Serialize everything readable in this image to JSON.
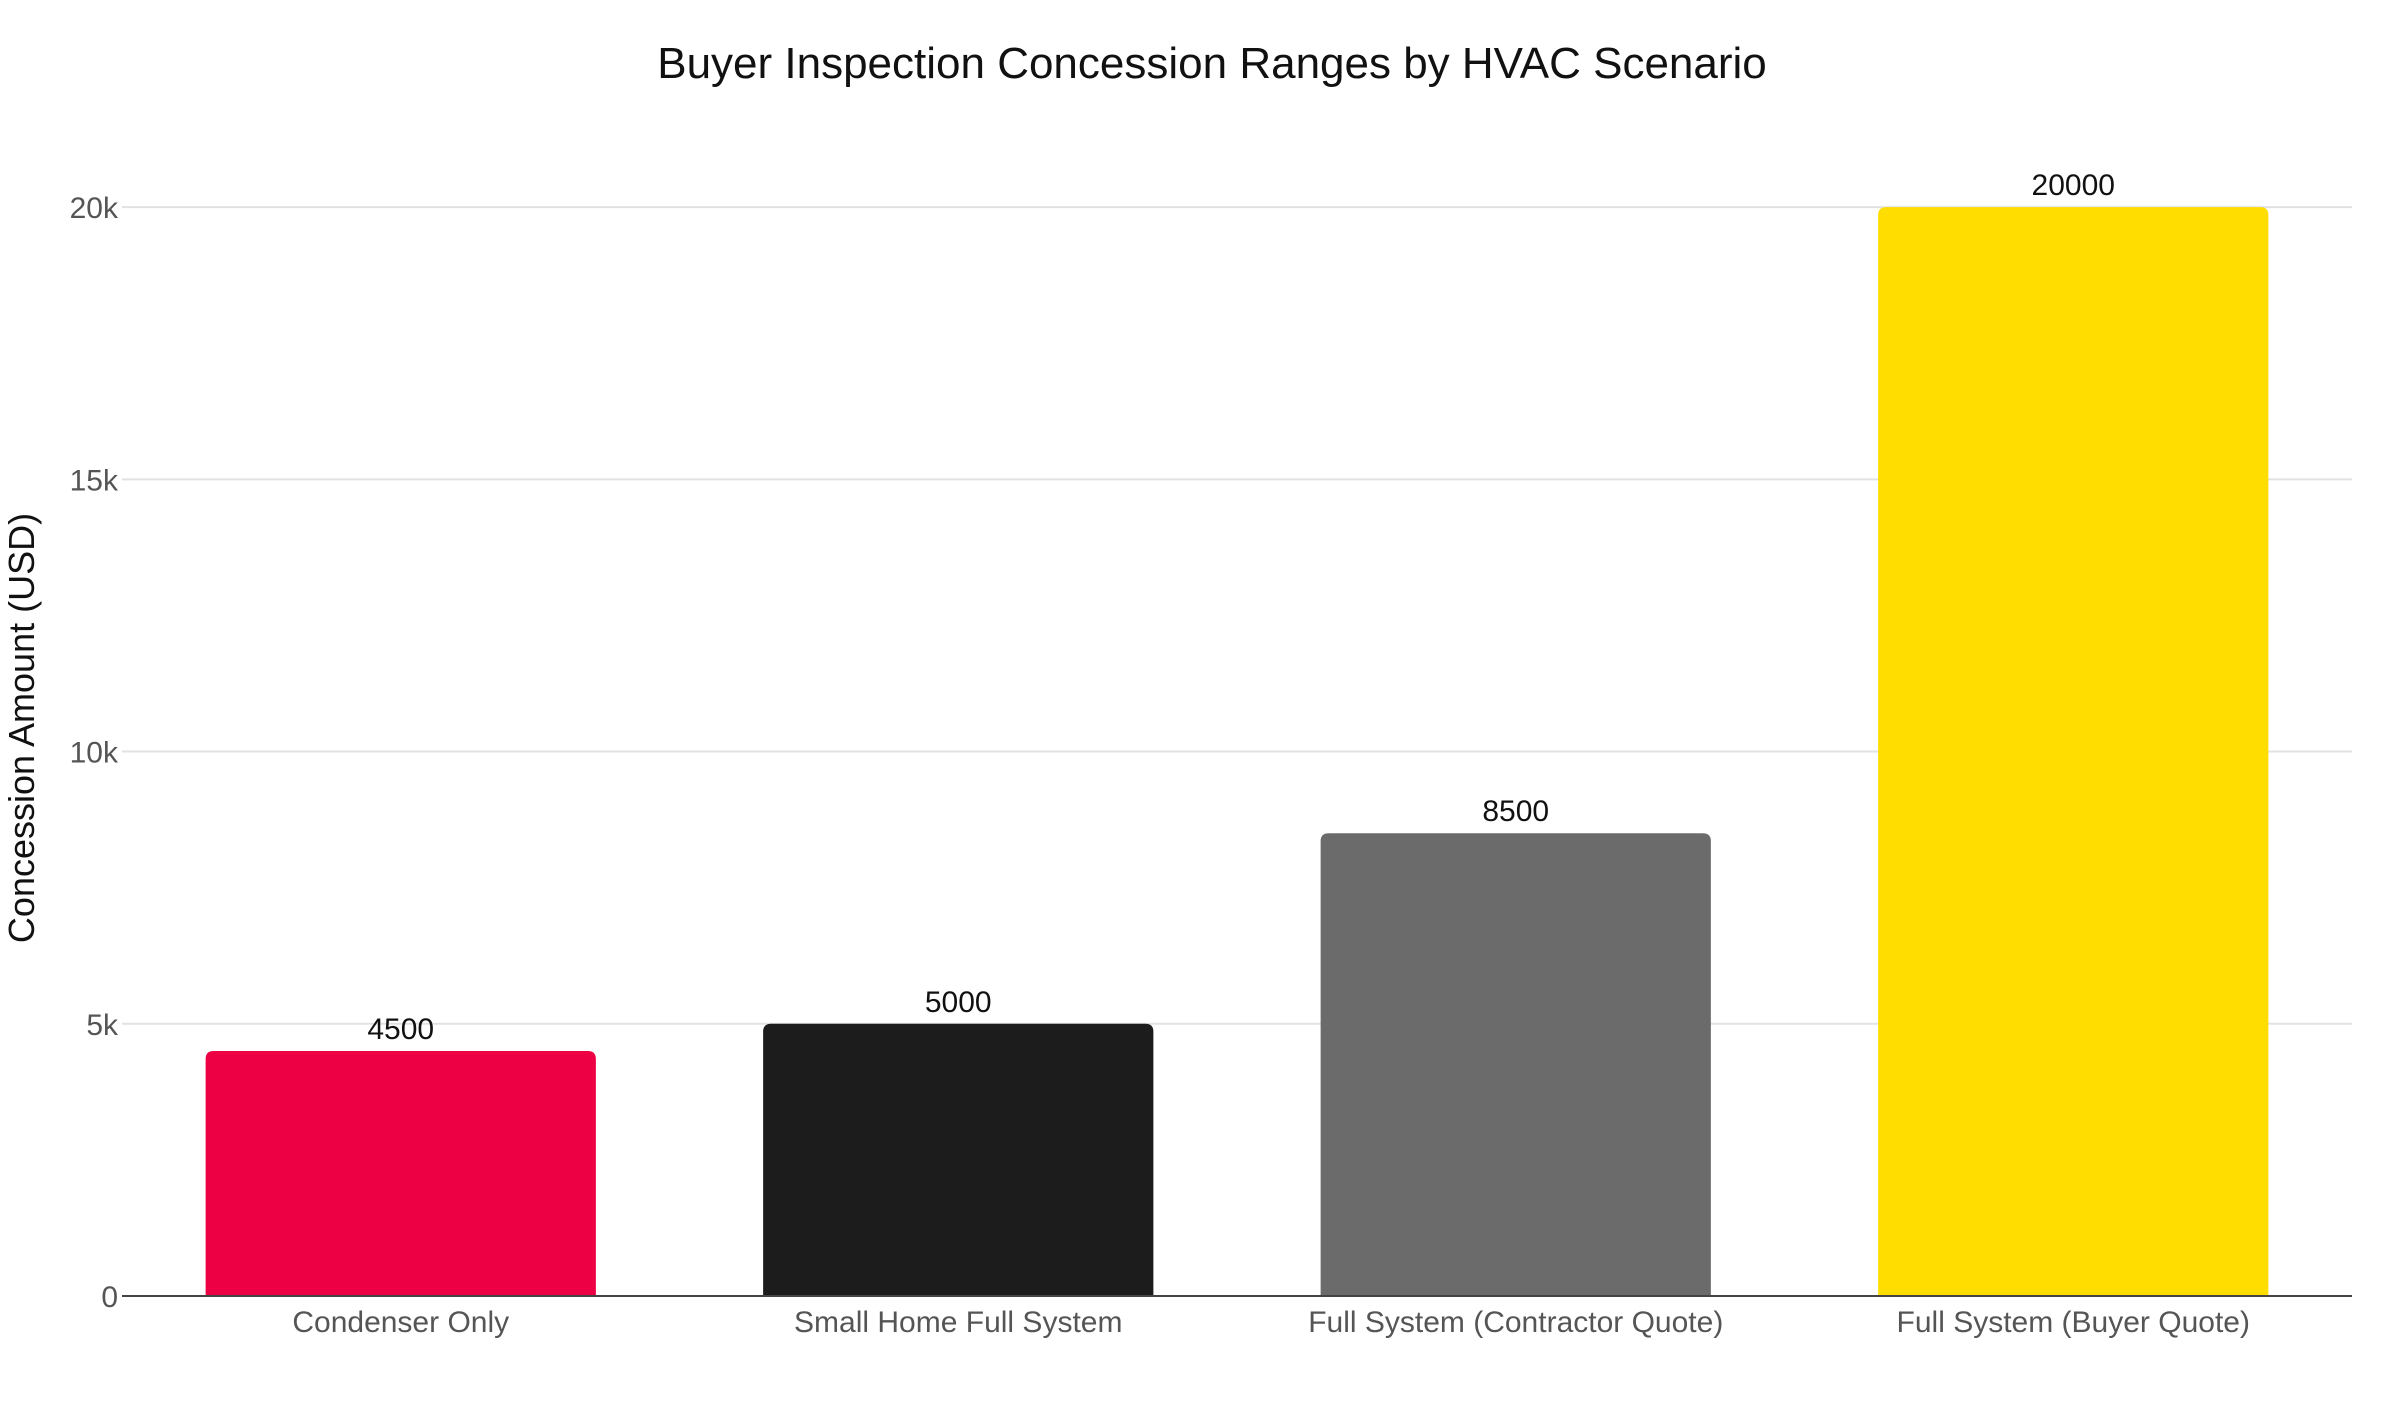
{
  "chart_data": {
    "type": "bar",
    "title": "Buyer Inspection Concession Ranges by HVAC Scenario",
    "xlabel": "",
    "ylabel": "Concession Amount (USD)",
    "categories": [
      "Condenser Only",
      "Small Home Full System",
      "Full System (Contractor Quote)",
      "Full System (Buyer Quote)"
    ],
    "values": [
      4500,
      5000,
      8500,
      20000
    ],
    "data_labels": [
      "4500",
      "5000",
      "8500",
      "20000"
    ],
    "colors": [
      "#EE0044",
      "#1C1C1C",
      "#6B6B6B",
      "#FFDD00"
    ],
    "ylim": [
      0,
      21600
    ],
    "yticks": [
      0,
      5000,
      10000,
      15000,
      20000
    ],
    "ytick_labels": [
      "0",
      "5k",
      "10k",
      "15k",
      "20k"
    ],
    "grid": true,
    "legend": "none"
  }
}
